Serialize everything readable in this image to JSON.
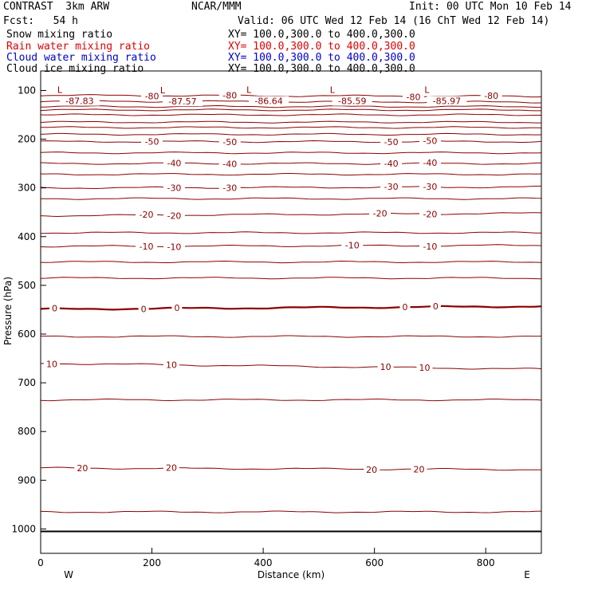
{
  "header": {
    "model": "CONTRAST  3km ARW",
    "center": "NCAR/MMM",
    "init": "Init: 00 UTC Mon 10 Feb 14",
    "fcst": "Fcst:   54 h",
    "valid": "Valid: 06 UTC Wed 12 Feb 14 (16 ChT Wed 12 Feb 14)",
    "fields": [
      {
        "name": "Snow mixing ratio",
        "xy": "XY= 100.0,300.0 to 400.0,300.0",
        "color": "#000000"
      },
      {
        "name": "Rain water mixing ratio",
        "xy": "XY= 100.0,300.0 to 400.0,300.0",
        "color": "#e00000"
      },
      {
        "name": "Cloud water mixing ratio",
        "xy": "XY= 100.0,300.0 to 400.0,300.0",
        "color": "#0000c8"
      },
      {
        "name": "Cloud ice mixing ratio",
        "xy": "XY= 100.0,300.0 to 400.0,300.0",
        "color": "#000000"
      }
    ]
  },
  "chart_data": {
    "type": "line",
    "xlabel": "Distance (km)",
    "ylabel": "Pressure (hPa)",
    "x_ticks": [
      0,
      200,
      400,
      600,
      800
    ],
    "y_ticks": [
      100,
      200,
      300,
      400,
      500,
      600,
      700,
      800,
      900,
      1000
    ],
    "xlim": [
      0,
      900
    ],
    "ylim": [
      1050,
      60
    ],
    "y_scale": "linear",
    "end_labels": {
      "left": "W",
      "right": "E"
    },
    "contour_color": "#8b0000",
    "lows": [
      {
        "x": 70,
        "p": 97,
        "value": "-87.83"
      },
      {
        "x": 255,
        "p": 98,
        "value": "-87.57"
      },
      {
        "x": 410,
        "p": 97,
        "value": "-86.64"
      },
      {
        "x": 560,
        "p": 97,
        "value": "-85.59"
      },
      {
        "x": 730,
        "p": 97,
        "value": "-85.97"
      }
    ],
    "isotherms": [
      {
        "value": "-80",
        "p_left": 110,
        "p_right": 112,
        "labels_x": [
          200,
          340,
          670,
          810
        ]
      },
      {
        "value": "-70",
        "p_left": 122,
        "p_right": 124,
        "labels_x": []
      },
      {
        "value": "-60",
        "p_left": 140,
        "p_right": 140,
        "labels_x": []
      },
      {
        "value": "-50",
        "p_left": 205,
        "p_right": 205,
        "labels_x": [
          200,
          340,
          630,
          700
        ]
      },
      {
        "value": "-40",
        "p_left": 250,
        "p_right": 250,
        "labels_x": [
          240,
          340,
          630,
          700
        ]
      },
      {
        "value": "-30",
        "p_left": 300,
        "p_right": 298,
        "labels_x": [
          240,
          340,
          630,
          700
        ]
      },
      {
        "value": "-20",
        "p_left": 357,
        "p_right": 352,
        "labels_x": [
          190,
          240,
          610,
          700
        ]
      },
      {
        "value": "-10",
        "p_left": 420,
        "p_right": 418,
        "labels_x": [
          190,
          240,
          560,
          700
        ]
      },
      {
        "value": "0",
        "p_left": 549,
        "p_right": 543,
        "labels_x": [
          25,
          185,
          245,
          655,
          710
        ],
        "bold": true
      },
      {
        "value": "10",
        "p_left": 660,
        "p_right": 672,
        "labels_x": [
          20,
          235,
          620,
          690
        ]
      },
      {
        "value": "20",
        "p_left": 875,
        "p_right": 878,
        "labels_x": [
          75,
          235,
          595,
          680
        ]
      }
    ],
    "extra_lines_hPa": [
      133,
      150,
      165,
      176,
      190,
      228,
      272,
      322,
      392,
      452,
      485,
      605,
      735,
      965
    ]
  }
}
